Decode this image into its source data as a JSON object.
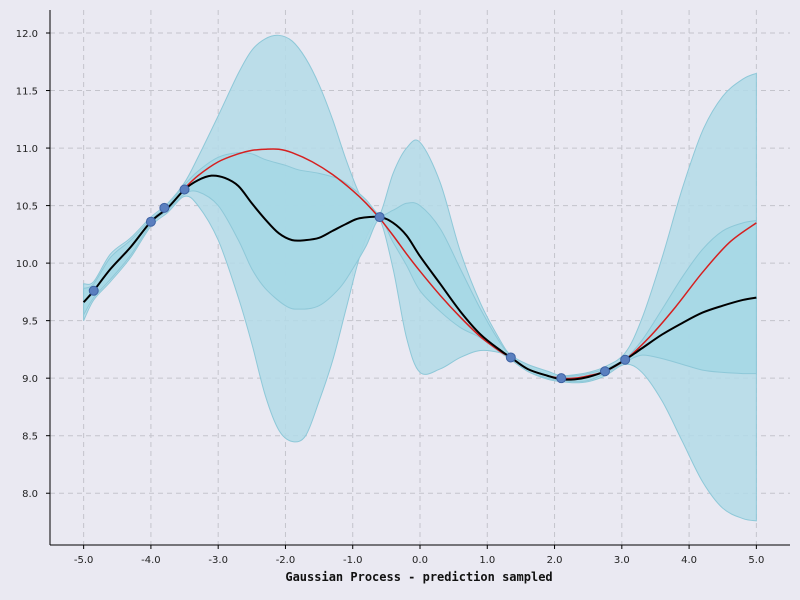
{
  "chart_data": {
    "type": "line",
    "title": "",
    "xlabel": "Gaussian Process - prediction sampled",
    "ylabel": "",
    "xlim": [
      -5.5,
      5.5
    ],
    "ylim": [
      7.55,
      12.2
    ],
    "grid": true,
    "x_ticks": [
      -5.0,
      -4.0,
      -3.0,
      -2.0,
      -1.0,
      0.0,
      1.0,
      2.0,
      3.0,
      4.0,
      5.0
    ],
    "x_tick_labels": [
      "-5.0",
      "-4.0",
      "-3.0",
      "-2.0",
      "-1.0",
      "0.0",
      "1.0",
      "2.0",
      "3.0",
      "4.0",
      "5.0"
    ],
    "y_ticks": [
      8.0,
      8.5,
      9.0,
      9.5,
      10.0,
      10.5,
      11.0,
      11.5,
      12.0
    ],
    "y_tick_labels": [
      "8.0",
      "8.5",
      "9.0",
      "9.5",
      "10.0",
      "10.5",
      "11.0",
      "11.5",
      "12.0"
    ],
    "colors": {
      "outer_band": "#b3dbe8",
      "inner_band": "#a6d8e6",
      "band_edge": "#8ec8d8",
      "true_function": "#d62020",
      "prediction": "#000000",
      "points_fill": "#5b7fbf",
      "points_edge": "#3f63a4",
      "grid": "#c4c4cc"
    },
    "series": [
      {
        "role": "true_function",
        "x": [
          -3.5,
          -3.3,
          -3.0,
          -2.7,
          -2.5,
          -2.3,
          -2.1,
          -1.9,
          -1.6,
          -1.3,
          -1.0,
          -0.8,
          -0.6,
          -0.4,
          -0.2,
          0.0,
          0.3,
          0.6,
          0.9,
          1.2,
          1.35,
          1.6,
          1.9,
          2.1,
          2.3,
          2.5,
          2.75,
          3.05,
          3.4,
          3.8,
          4.2,
          4.6,
          5.0
        ],
        "y": [
          10.65,
          10.76,
          10.88,
          10.95,
          10.98,
          10.99,
          10.99,
          10.96,
          10.88,
          10.77,
          10.63,
          10.52,
          10.39,
          10.24,
          10.08,
          9.93,
          9.72,
          9.53,
          9.36,
          9.23,
          9.18,
          9.08,
          9.02,
          9.0,
          9.0,
          9.02,
          9.06,
          9.16,
          9.35,
          9.62,
          9.92,
          10.18,
          10.35
        ]
      },
      {
        "role": "prediction",
        "x": [
          -5.0,
          -4.85,
          -4.6,
          -4.3,
          -4.0,
          -3.75,
          -3.5,
          -3.3,
          -3.1,
          -2.9,
          -2.7,
          -2.5,
          -2.3,
          -2.1,
          -1.9,
          -1.7,
          -1.5,
          -1.3,
          -1.1,
          -0.9,
          -0.6,
          -0.4,
          -0.2,
          0.0,
          0.3,
          0.6,
          0.9,
          1.2,
          1.35,
          1.6,
          1.9,
          2.1,
          2.3,
          2.5,
          2.75,
          3.05,
          3.3,
          3.6,
          3.9,
          4.2,
          4.5,
          4.8,
          5.0
        ],
        "y": [
          9.66,
          9.76,
          9.95,
          10.14,
          10.36,
          10.48,
          10.64,
          10.72,
          10.76,
          10.74,
          10.67,
          10.52,
          10.38,
          10.26,
          10.2,
          10.2,
          10.22,
          10.28,
          10.34,
          10.39,
          10.4,
          10.35,
          10.24,
          10.06,
          9.82,
          9.58,
          9.38,
          9.24,
          9.18,
          9.08,
          9.02,
          8.99,
          8.99,
          9.01,
          9.06,
          9.16,
          9.26,
          9.38,
          9.48,
          9.57,
          9.63,
          9.68,
          9.7
        ]
      }
    ],
    "inner_band": {
      "x": [
        -5.0,
        -4.85,
        -4.6,
        -4.3,
        -4.0,
        -3.75,
        -3.5,
        -3.3,
        -3.0,
        -2.7,
        -2.5,
        -2.3,
        -2.0,
        -1.8,
        -1.5,
        -1.2,
        -1.0,
        -0.8,
        -0.6,
        -0.4,
        -0.2,
        0.0,
        0.3,
        0.6,
        0.9,
        1.2,
        1.35,
        1.6,
        1.9,
        2.1,
        2.3,
        2.5,
        2.75,
        3.05,
        3.3,
        3.6,
        3.9,
        4.2,
        4.5,
        4.8,
        5.0
      ],
      "upper": [
        9.78,
        9.82,
        10.05,
        10.2,
        10.38,
        10.5,
        10.68,
        10.8,
        10.92,
        10.96,
        10.95,
        10.9,
        10.85,
        10.81,
        10.78,
        10.73,
        10.65,
        10.55,
        10.42,
        10.46,
        10.52,
        10.5,
        10.3,
        9.95,
        9.6,
        9.3,
        9.2,
        9.12,
        9.06,
        9.02,
        9.02,
        9.04,
        9.08,
        9.17,
        9.33,
        9.6,
        9.88,
        10.12,
        10.28,
        10.35,
        10.37
      ],
      "lower": [
        9.55,
        9.7,
        9.86,
        10.07,
        10.34,
        10.46,
        10.6,
        10.62,
        10.5,
        10.2,
        9.95,
        9.78,
        9.63,
        9.6,
        9.63,
        9.78,
        9.95,
        10.15,
        10.38,
        10.18,
        9.98,
        9.76,
        9.58,
        9.44,
        9.35,
        9.22,
        9.16,
        9.06,
        9.0,
        8.98,
        8.97,
        8.98,
        9.04,
        9.14,
        9.2,
        9.17,
        9.12,
        9.07,
        9.05,
        9.04,
        9.04
      ]
    },
    "outer_band": {
      "x": [
        -5.0,
        -4.85,
        -4.6,
        -4.3,
        -4.0,
        -3.75,
        -3.5,
        -3.3,
        -3.0,
        -2.7,
        -2.5,
        -2.3,
        -2.1,
        -1.9,
        -1.7,
        -1.5,
        -1.3,
        -1.1,
        -0.9,
        -0.75,
        -0.6,
        -0.4,
        -0.2,
        0.0,
        0.3,
        0.6,
        0.9,
        1.2,
        1.35,
        1.6,
        1.9,
        2.1,
        2.3,
        2.5,
        2.75,
        3.05,
        3.3,
        3.6,
        3.9,
        4.2,
        4.5,
        4.8,
        5.0
      ],
      "upper": [
        9.82,
        9.84,
        10.08,
        10.22,
        10.4,
        10.52,
        10.7,
        10.92,
        11.28,
        11.65,
        11.85,
        11.95,
        11.98,
        11.93,
        11.78,
        11.55,
        11.25,
        10.9,
        10.6,
        10.48,
        10.42,
        10.78,
        11.0,
        11.05,
        10.7,
        10.1,
        9.65,
        9.32,
        9.2,
        9.1,
        9.04,
        9.02,
        9.03,
        9.05,
        9.1,
        9.22,
        9.52,
        10.05,
        10.65,
        11.15,
        11.45,
        11.6,
        11.65
      ],
      "lower": [
        9.5,
        9.68,
        9.84,
        10.05,
        10.32,
        10.44,
        10.58,
        10.5,
        10.2,
        9.7,
        9.3,
        8.85,
        8.55,
        8.45,
        8.5,
        8.8,
        9.15,
        9.6,
        10.05,
        10.28,
        10.38,
        9.95,
        9.35,
        9.05,
        9.08,
        9.18,
        9.24,
        9.22,
        9.18,
        9.06,
        8.99,
        8.97,
        8.96,
        8.97,
        9.02,
        9.12,
        9.05,
        8.8,
        8.45,
        8.1,
        7.87,
        7.78,
        7.76
      ]
    },
    "observations": {
      "x": [
        -4.85,
        -4.0,
        -3.8,
        -3.5,
        -0.6,
        1.35,
        2.1,
        2.75,
        3.05
      ],
      "y": [
        9.76,
        10.36,
        10.48,
        10.64,
        10.4,
        9.18,
        9.0,
        9.06,
        9.16
      ]
    }
  }
}
